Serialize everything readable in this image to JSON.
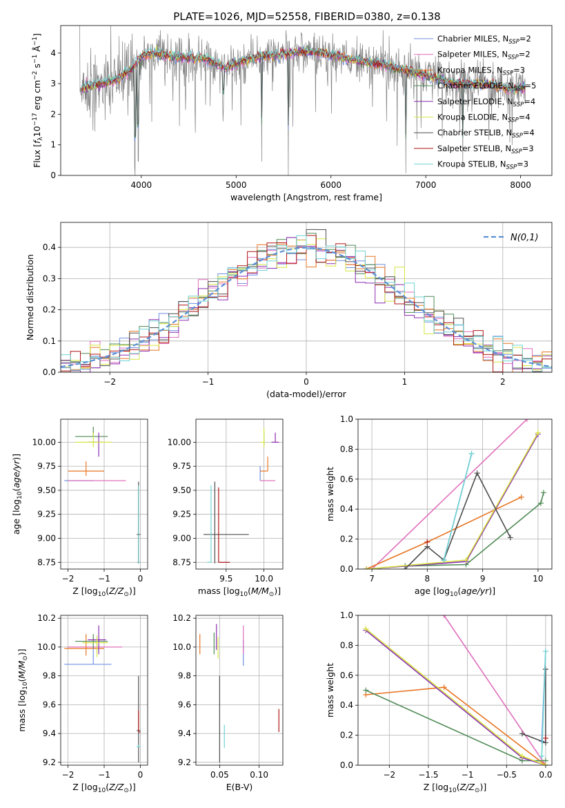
{
  "title": "PLATE=1026, MJD=52558, FIBERID=0380, z=0.138",
  "colors": {
    "chabrier_miles": "#6f8fe0",
    "salpeter_miles": "#e06ebc",
    "kroupa_miles": "#e8731f",
    "chabrier_elodie": "#4e8a55",
    "salpeter_elodie": "#8a2ab0",
    "kroupa_elodie": "#d6e640",
    "chabrier_stelib": "#4d4d4d",
    "salpeter_stelib": "#b01414",
    "kroupa_stelib": "#6fd3d3",
    "data": "#808080",
    "normal": "#5b8fd6"
  },
  "legend": [
    "Chabrier MILES, N_SSP=2",
    "Salpeter MILES, N_SSP=2",
    "Kroupa MILES, N_SSP=3",
    "Chabrier ELODIE, N_SSP=5",
    "Salpeter ELODIE, N_SSP=4",
    "Kroupa ELODIE, N_SSP=4",
    "Chabrier STELIB, N_SSP=4",
    "Salpeter STELIB, N_SSP=3",
    "Kroupa STELIB, N_SSP=3"
  ],
  "chart_data": [
    {
      "id": "spectrum",
      "type": "line",
      "title": "PLATE=1026, MJD=52558, FIBERID=0380, z=0.138",
      "xlabel": "wavelength [Angstrom, rest frame]",
      "ylabel_prefix": "Flux [",
      "ylabel_main": "f",
      "ylabel_rest": "10",
      "xlim": [
        3150,
        8330
      ],
      "ylim": [
        0,
        4.9
      ],
      "xticks": [
        4000,
        5000,
        6000,
        7000,
        8000
      ],
      "yticks": [
        0,
        1,
        2,
        3,
        4
      ],
      "grid": false,
      "legend_position": "right",
      "continuum": {
        "x": [
          3350,
          3500,
          3600,
          3700,
          3800,
          3900,
          4000,
          4100,
          4300,
          4500,
          4700,
          4900,
          5100,
          5300,
          5500,
          5700,
          5900,
          6100,
          6300,
          6500,
          6700,
          6900,
          7100,
          7300,
          7500,
          7700,
          7900,
          8050
        ],
        "y": [
          2.85,
          2.95,
          3.0,
          3.1,
          3.25,
          3.5,
          3.9,
          4.0,
          3.9,
          3.85,
          3.8,
          3.5,
          3.8,
          3.9,
          3.95,
          4.05,
          4.0,
          3.85,
          3.75,
          3.65,
          3.5,
          3.35,
          3.2,
          3.0,
          3.0,
          2.95,
          2.8,
          2.85
        ]
      },
      "absorption_features": [
        {
          "x": 3933,
          "depth": 4.0
        },
        {
          "x": 3968,
          "depth": 3.5
        },
        {
          "x": 4861,
          "depth": 1.4
        },
        {
          "x": 5270,
          "depth": 3.5
        },
        {
          "x": 5550,
          "depth": 4.0
        },
        {
          "x": 6790,
          "depth": 3.5
        },
        {
          "x": 7390,
          "depth": 2.8
        }
      ]
    },
    {
      "id": "residuals",
      "type": "histogram",
      "xlabel": "(data-model)/error",
      "ylabel": "Normed distribution",
      "xlim": [
        -2.5,
        2.5
      ],
      "ylim": [
        0,
        0.48
      ],
      "xticks": [
        -2,
        -1,
        0,
        1,
        2
      ],
      "yticks": [
        0.0,
        0.1,
        0.2,
        0.3,
        0.4
      ],
      "grid": true,
      "legend": "N(0,1)",
      "legend_position": "top-right",
      "bin_width": 0.1
    },
    {
      "id": "age_vs_Z",
      "type": "errorbar",
      "xlabel_prefix": "Z [log",
      "xlabel_frac": "(Z/Z",
      "ylabel_prefix": "age  [log",
      "ylabel_frac": "(age/yr)]",
      "xlim": [
        -2.2,
        0.2
      ],
      "ylim": [
        8.68,
        10.24
      ],
      "xticks": [
        -2,
        -1,
        0
      ],
      "yticks": [
        8.75,
        9.0,
        9.25,
        9.5,
        9.75,
        10.0
      ],
      "points": [
        {
          "series": "chabrier_miles",
          "x": -1.3,
          "y": 9.6,
          "xerr": [
            0.8,
            0.0
          ],
          "yerr": [
            0.0,
            0.0
          ]
        },
        {
          "series": "salpeter_miles",
          "x": -1.2,
          "y": 9.6,
          "xerr": [
            0.8,
            0.8
          ],
          "yerr": [
            0,
            0
          ]
        },
        {
          "series": "kroupa_miles",
          "x": -1.5,
          "y": 9.7,
          "xerr": [
            0.5,
            0.5
          ],
          "yerr": [
            0.05,
            0.1
          ]
        },
        {
          "series": "chabrier_elodie",
          "x": -1.3,
          "y": 10.06,
          "xerr": [
            0.5,
            0.4
          ],
          "yerr": [
            0.0,
            0.1
          ]
        },
        {
          "series": "salpeter_elodie",
          "x": -1.15,
          "y": 10.0,
          "xerr": [
            0.3,
            0.1
          ],
          "yerr": [
            0.15,
            0.1
          ]
        },
        {
          "series": "kroupa_elodie",
          "x": -1.3,
          "y": 10.0,
          "xerr": [
            0.5,
            0.5
          ],
          "yerr": [
            0.05,
            0.1
          ]
        },
        {
          "series": "chabrier_stelib",
          "x": -0.05,
          "y": 9.04,
          "xerr": [
            0.05,
            0.05
          ],
          "yerr": [
            0.3,
            0.55
          ]
        },
        {
          "series": "salpeter_stelib",
          "x": -0.05,
          "y": 8.75,
          "xerr": [
            0.03,
            0.03
          ],
          "yerr": [
            0.0,
            0.8
          ]
        },
        {
          "series": "kroupa_stelib",
          "x": -0.05,
          "y": 8.75,
          "xerr": [
            0.03,
            0.05
          ],
          "yerr": [
            0.0,
            0.8
          ]
        }
      ]
    },
    {
      "id": "age_vs_mass",
      "type": "errorbar",
      "xlabel_prefix": "mass [log",
      "xlabel_frac": "(M/M",
      "xlim": [
        9.1,
        10.25
      ],
      "ylim": [
        8.68,
        10.24
      ],
      "xticks": [
        9.5,
        10.0
      ],
      "yticks": [
        8.75,
        9.0,
        9.25,
        9.5,
        9.75,
        10.0
      ],
      "points": [
        {
          "series": "chabrier_miles",
          "x": 9.95,
          "y": 9.6,
          "xerr": [
            0.0,
            0.0
          ],
          "yerr": [
            0.0,
            0.15
          ]
        },
        {
          "series": "salpeter_miles",
          "x": 10.05,
          "y": 9.6,
          "xerr": [
            0.1,
            0.1
          ],
          "yerr": [
            0,
            0
          ]
        },
        {
          "series": "kroupa_miles",
          "x": 10.05,
          "y": 9.7,
          "xerr": [
            0.1,
            0.0
          ],
          "yerr": [
            0.0,
            0.15
          ]
        },
        {
          "series": "chabrier_elodie",
          "x": 10.0,
          "y": 10.06,
          "xerr": [
            0.0,
            0.0
          ],
          "yerr": [
            0.1,
            0.05
          ]
        },
        {
          "series": "salpeter_elodie",
          "x": 10.15,
          "y": 10.0,
          "xerr": [
            0.05,
            0.05
          ],
          "yerr": [
            0.0,
            0.1
          ]
        },
        {
          "series": "kroupa_elodie",
          "x": 10.0,
          "y": 10.0,
          "xerr": [
            0.05,
            0.0
          ],
          "yerr": [
            0.05,
            0.15
          ]
        },
        {
          "series": "chabrier_stelib",
          "x": 9.35,
          "y": 9.04,
          "xerr": [
            0.15,
            0.45
          ],
          "yerr": [
            0.3,
            0.55
          ]
        },
        {
          "series": "salpeter_stelib",
          "x": 9.4,
          "y": 8.75,
          "xerr": [
            0.0,
            0.15
          ],
          "yerr": [
            0.0,
            0.78
          ]
        },
        {
          "series": "kroupa_stelib",
          "x": 9.3,
          "y": 8.75,
          "xerr": [
            0.05,
            0.0
          ],
          "yerr": [
            0.0,
            0.8
          ]
        }
      ]
    },
    {
      "id": "mass_weight_vs_age",
      "type": "line",
      "xlabel_prefix": "age  [log",
      "xlabel_frac": "(age/yr)]",
      "ylabel": "mass weight",
      "xlim": [
        6.75,
        10.25
      ],
      "ylim": [
        0.0,
        1.0
      ],
      "xticks": [
        7,
        8,
        9,
        10
      ],
      "yticks": [
        0.0,
        0.2,
        0.4,
        0.6,
        0.8,
        1.0
      ],
      "series": [
        {
          "key": "chabrier_miles",
          "x": [
            8.3,
            8.8
          ],
          "y": [
            0.06,
            0.77
          ]
        },
        {
          "key": "salpeter_miles",
          "x": [
            7.0,
            9.8
          ],
          "y": [
            0.0,
            1.0
          ]
        },
        {
          "key": "kroupa_miles",
          "x": [
            6.9,
            8.0,
            9.7
          ],
          "y": [
            0.0,
            0.18,
            0.48
          ]
        },
        {
          "key": "chabrier_elodie",
          "x": [
            6.9,
            7.6,
            8.7,
            10.05,
            10.1
          ],
          "y": [
            0.0,
            0.02,
            0.03,
            0.44,
            0.51
          ]
        },
        {
          "key": "salpeter_elodie",
          "x": [
            6.9,
            8.7,
            10.0
          ],
          "y": [
            0.0,
            0.05,
            0.9
          ]
        },
        {
          "key": "kroupa_elodie",
          "x": [
            6.9,
            8.7,
            10.0
          ],
          "y": [
            0.0,
            0.06,
            0.91
          ]
        },
        {
          "key": "chabrier_stelib",
          "x": [
            7.6,
            8.0,
            8.3,
            8.9,
            9.5
          ],
          "y": [
            0.0,
            0.15,
            0.06,
            0.64,
            0.21
          ]
        },
        {
          "key": "salpeter_stelib",
          "x": [
            8.0
          ],
          "y": [
            0.18
          ]
        },
        {
          "key": "kroupa_stelib",
          "x": [
            8.3,
            8.8
          ],
          "y": [
            0.06,
            0.77
          ]
        }
      ]
    },
    {
      "id": "mass_vs_Z",
      "type": "errorbar",
      "xlabel_prefix": "Z [log",
      "xlabel_frac": "(Z/Z",
      "ylabel_prefix": "mass [log",
      "ylabel_frac": "(M/M",
      "xlim": [
        -2.2,
        0.2
      ],
      "ylim": [
        9.18,
        10.22
      ],
      "xticks": [
        -2,
        -1,
        0
      ],
      "yticks": [
        9.2,
        9.4,
        9.6,
        9.8,
        10.0,
        10.2
      ],
      "points": [
        {
          "series": "chabrier_miles",
          "x": -1.3,
          "y": 9.88,
          "xerr": [
            0.8,
            0.5
          ],
          "yerr": [
            0.0,
            0.12
          ]
        },
        {
          "series": "salpeter_miles",
          "x": -1.2,
          "y": 10.0,
          "xerr": [
            0.8,
            0.7
          ],
          "yerr": [
            0,
            0
          ]
        },
        {
          "series": "kroupa_miles",
          "x": -1.5,
          "y": 9.99,
          "xerr": [
            0.6,
            0.5
          ],
          "yerr": [
            0.05,
            0.1
          ]
        },
        {
          "series": "chabrier_elodie",
          "x": -1.3,
          "y": 10.04,
          "xerr": [
            0.5,
            0.4
          ],
          "yerr": [
            0.05,
            0.05
          ]
        },
        {
          "series": "salpeter_elodie",
          "x": -1.15,
          "y": 10.05,
          "xerr": [
            0.3,
            0.2
          ],
          "yerr": [
            0.1,
            0.1
          ]
        },
        {
          "series": "kroupa_elodie",
          "x": -1.2,
          "y": 10.03,
          "xerr": [
            0.4,
            0.3
          ],
          "yerr": [
            0.1,
            0.05
          ]
        },
        {
          "series": "chabrier_stelib",
          "x": -0.05,
          "y": 9.42,
          "xerr": [
            0.05,
            0.05
          ],
          "yerr": [
            0.22,
            0.38
          ]
        },
        {
          "series": "salpeter_stelib",
          "x": -0.05,
          "y": 9.41,
          "xerr": [
            0.0,
            0.05
          ],
          "yerr": [
            0.0,
            0.15
          ]
        },
        {
          "series": "kroupa_stelib",
          "x": -0.05,
          "y": 9.31,
          "xerr": [
            0.05,
            0.05
          ],
          "yerr": [
            0.0,
            0.01
          ]
        }
      ]
    },
    {
      "id": "mass_vs_ebv",
      "type": "errorbar",
      "xlabel": "E(B-V)",
      "xlim": [
        0.02,
        0.13
      ],
      "ylim": [
        9.18,
        10.22
      ],
      "xticks": [
        0.05,
        0.1
      ],
      "yticks": [
        9.2,
        9.4,
        9.6,
        9.8,
        10.0,
        10.2
      ],
      "points": [
        {
          "series": "chabrier_miles",
          "x": 0.08,
          "y": 9.95,
          "yerr": [
            0.08,
            0.1
          ]
        },
        {
          "series": "salpeter_miles",
          "x": 0.08,
          "y": 10.05,
          "yerr": [
            0.1,
            0.1
          ]
        },
        {
          "series": "kroupa_miles",
          "x": 0.025,
          "y": 10.02,
          "yerr": [
            0.07,
            0.07
          ]
        },
        {
          "series": "chabrier_elodie",
          "x": 0.043,
          "y": 10.05,
          "yerr": [
            0.1,
            0.05
          ]
        },
        {
          "series": "salpeter_elodie",
          "x": 0.046,
          "y": 10.08,
          "yerr": [
            0.1,
            0.08
          ]
        },
        {
          "series": "kroupa_elodie",
          "x": 0.048,
          "y": 10.02,
          "yerr": [
            0.1,
            0.05
          ]
        },
        {
          "series": "chabrier_stelib",
          "x": 0.05,
          "y": 9.5,
          "yerr": [
            0.3,
            0.3
          ]
        },
        {
          "series": "salpeter_stelib",
          "x": 0.125,
          "y": 9.49,
          "yerr": [
            0.08,
            0.08
          ]
        },
        {
          "series": "kroupa_stelib",
          "x": 0.056,
          "y": 9.38,
          "yerr": [
            0.08,
            0.08
          ]
        }
      ]
    },
    {
      "id": "mass_weight_vs_Z",
      "type": "line",
      "xlabel_prefix": "Z [log",
      "xlabel_frac": "(Z/Z",
      "ylabel": "mass weight",
      "xlim": [
        -2.4,
        0.08
      ],
      "ylim": [
        0.0,
        1.0
      ],
      "xticks": [
        -2.0,
        -1.5,
        -1.0,
        -0.5,
        0.0
      ],
      "yticks": [
        0.0,
        0.2,
        0.4,
        0.6,
        0.8,
        1.0
      ],
      "series": [
        {
          "key": "chabrier_miles",
          "x": [
            -0.05,
            0.0
          ],
          "y": [
            0.16,
            0.76
          ]
        },
        {
          "key": "salpeter_miles",
          "x": [
            -1.3,
            0.0
          ],
          "y": [
            1.0,
            0.0
          ]
        },
        {
          "key": "kroupa_miles",
          "x": [
            -2.3,
            -1.3,
            0.0
          ],
          "y": [
            0.47,
            0.52,
            0.0
          ]
        },
        {
          "key": "chabrier_elodie",
          "x": [
            -2.3,
            -0.3,
            0.0
          ],
          "y": [
            0.5,
            0.03,
            0.03
          ]
        },
        {
          "key": "salpeter_elodie",
          "x": [
            -2.3,
            -0.3,
            0.0
          ],
          "y": [
            0.9,
            0.05,
            0.0
          ]
        },
        {
          "key": "kroupa_elodie",
          "x": [
            -2.3,
            -0.3,
            0.0
          ],
          "y": [
            0.91,
            0.06,
            0.0
          ]
        },
        {
          "key": "chabrier_stelib",
          "x": [
            -0.3,
            0.0,
            0.0
          ],
          "y": [
            0.21,
            0.15,
            0.64
          ]
        },
        {
          "key": "salpeter_stelib",
          "x": [
            0.0
          ],
          "y": [
            0.18
          ]
        },
        {
          "key": "kroupa_stelib",
          "x": [
            -0.05,
            0.0
          ],
          "y": [
            0.06,
            0.76
          ]
        }
      ]
    }
  ]
}
